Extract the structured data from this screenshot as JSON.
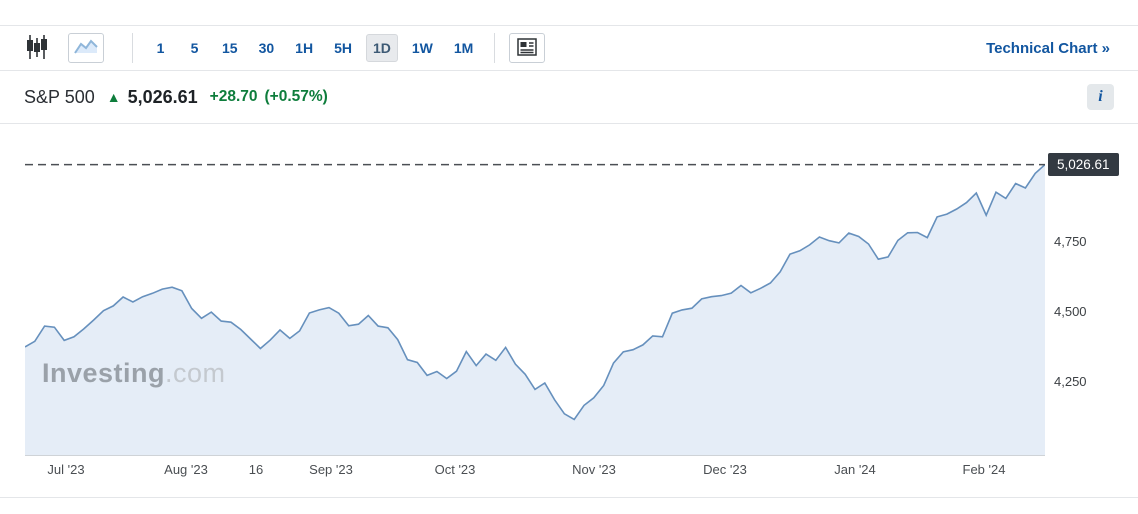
{
  "colors": {
    "accent_blue": "#1256a0",
    "change_green": "#0e7d3c",
    "toolbar_icon": "#2f3337",
    "border_gray": "#e4e6e9",
    "tag_bg": "#333a42",
    "watermark_bold": "#9aa1a9",
    "watermark_light": "#c4c9cf"
  },
  "toolbar": {
    "timeframes": [
      "1",
      "5",
      "15",
      "30",
      "1H",
      "5H",
      "1D",
      "1W",
      "1M"
    ],
    "selected_timeframe": "1D",
    "technical_chart_label": "Technical Chart »"
  },
  "header": {
    "symbol": "S&P 500",
    "arrow": "▲",
    "price": "5,026.61",
    "change": "+28.70",
    "change_percent": "(+0.57%)",
    "info_label": "i"
  },
  "watermark": {
    "bold": "Investing",
    "light": ".com"
  },
  "chart_data": {
    "type": "area",
    "title": "S&P 500 daily price, Jul '23 – Feb '24",
    "last_price": 5026.61,
    "last_price_label": "5,026.61",
    "ylim": [
      3990,
      5150
    ],
    "y_ticks": [
      4750,
      4500,
      4250
    ],
    "x_ticks": [
      {
        "label": "Jul '23",
        "pos": 0.04
      },
      {
        "label": "Aug '23",
        "pos": 0.158
      },
      {
        "label": "16",
        "pos": 0.226
      },
      {
        "label": "Sep '23",
        "pos": 0.3
      },
      {
        "label": "Oct '23",
        "pos": 0.422
      },
      {
        "label": "Nov '23",
        "pos": 0.558
      },
      {
        "label": "Dec '23",
        "pos": 0.686
      },
      {
        "label": "Jan '24",
        "pos": 0.814
      },
      {
        "label": "Feb '24",
        "pos": 0.94
      }
    ],
    "grid": false,
    "legend": false,
    "line_color": "#6690bd",
    "fill_color": "#e5edf7",
    "dash_color": "#4b4f54",
    "prices": [
      4376,
      4396,
      4450,
      4446,
      4399,
      4412,
      4440,
      4472,
      4505,
      4522,
      4554,
      4536,
      4555,
      4567,
      4582,
      4589,
      4576,
      4513,
      4478,
      4500,
      4468,
      4464,
      4438,
      4404,
      4370,
      4400,
      4436,
      4406,
      4433,
      4497,
      4508,
      4516,
      4496,
      4451,
      4457,
      4488,
      4450,
      4444,
      4402,
      4330,
      4320,
      4274,
      4288,
      4263,
      4289,
      4359,
      4309,
      4350,
      4328,
      4374,
      4314,
      4278,
      4224,
      4247,
      4187,
      4137,
      4117,
      4167,
      4194,
      4238,
      4318,
      4358,
      4366,
      4383,
      4415,
      4412,
      4496,
      4508,
      4514,
      4547,
      4555,
      4559,
      4568,
      4595,
      4569,
      4585,
      4604,
      4644,
      4707,
      4719,
      4740,
      4768,
      4755,
      4747,
      4782,
      4770,
      4743,
      4689,
      4697,
      4756,
      4783,
      4784,
      4766,
      4840,
      4850,
      4868,
      4891,
      4925,
      4846,
      4928,
      4906,
      4959,
      4943,
      4995,
      5026.61
    ]
  }
}
